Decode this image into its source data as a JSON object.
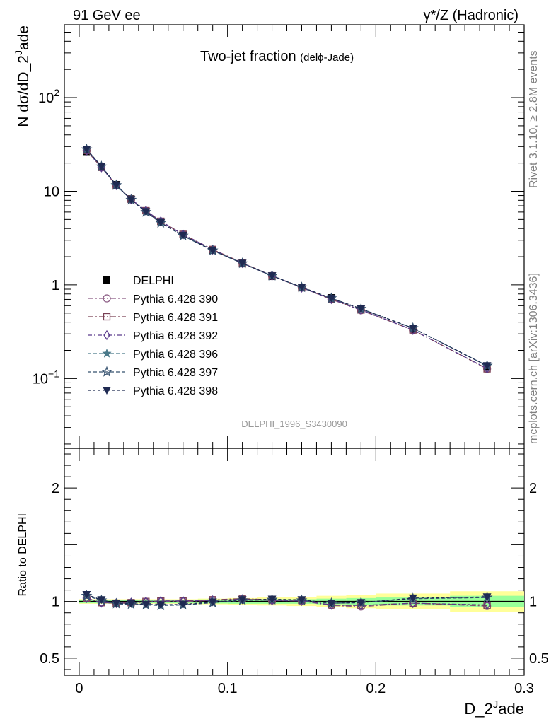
{
  "header": {
    "left": "91 GeV ee",
    "right": "γ*/Z (Hadronic)"
  },
  "side": {
    "rivet": "Rivet 3.1.10, ≥ 2.8M events",
    "source": "mcplots.cern.ch [arXiv:1306.3436]"
  },
  "chart_data": [
    {
      "type": "line",
      "title": "Two-jet fraction",
      "subtitle": "(delϕ-Jade)",
      "ylabel_parts": [
        "N dσ/dD_2",
        "J",
        "ade"
      ],
      "analysis": "DELPHI_1996_S3430090",
      "yscale": "log",
      "ylim": [
        0.018,
        600
      ],
      "xlim": [
        -0.01,
        0.3
      ],
      "y_ticks": [
        {
          "v": 0.1,
          "base": "10",
          "exp": "−1"
        },
        {
          "v": 1,
          "base": "1",
          "exp": ""
        },
        {
          "v": 10,
          "base": "10",
          "exp": ""
        },
        {
          "v": 100,
          "base": "10",
          "exp": "2"
        }
      ],
      "x": [
        0.005,
        0.015,
        0.025,
        0.035,
        0.045,
        0.055,
        0.07,
        0.09,
        0.11,
        0.13,
        0.15,
        0.17,
        0.19,
        0.225,
        0.275
      ],
      "series": [
        {
          "name": "DELPHI",
          "color": "#000000",
          "marker": "square",
          "values": [
            26.5,
            18.2,
            11.8,
            8.3,
            6.2,
            4.75,
            3.45,
            2.35,
            1.68,
            1.23,
            0.93,
            0.73,
            0.56,
            0.335,
            0.132
          ]
        },
        {
          "name": "Pythia 6.428 390",
          "color": "#8a5a83",
          "marker": "circle-open",
          "values": [
            27.2,
            18.0,
            11.6,
            8.15,
            6.15,
            4.75,
            3.45,
            2.38,
            1.71,
            1.25,
            0.935,
            0.7,
            0.535,
            0.33,
            0.127
          ]
        },
        {
          "name": "Pythia 6.428 391",
          "color": "#7a4054",
          "marker": "square-open",
          "values": [
            27.3,
            18.0,
            11.6,
            8.2,
            6.2,
            4.78,
            3.47,
            2.39,
            1.72,
            1.25,
            0.94,
            0.705,
            0.54,
            0.33,
            0.127
          ]
        },
        {
          "name": "Pythia 6.428 392",
          "color": "#5a3a8c",
          "marker": "diamond-open",
          "values": [
            27.2,
            18.0,
            11.6,
            8.2,
            6.2,
            4.78,
            3.46,
            2.38,
            1.71,
            1.25,
            0.935,
            0.705,
            0.54,
            0.33,
            0.128
          ]
        },
        {
          "name": "Pythia 6.428 396",
          "color": "#4a7a8a",
          "marker": "star",
          "values": [
            28.0,
            18.4,
            11.6,
            8.1,
            6.0,
            4.6,
            3.35,
            2.33,
            1.7,
            1.25,
            0.94,
            0.72,
            0.555,
            0.345,
            0.137
          ]
        },
        {
          "name": "Pythia 6.428 397",
          "color": "#34506e",
          "marker": "star-open",
          "values": [
            28.0,
            18.4,
            11.6,
            8.1,
            6.0,
            4.6,
            3.35,
            2.33,
            1.7,
            1.25,
            0.94,
            0.72,
            0.555,
            0.345,
            0.137
          ]
        },
        {
          "name": "Pythia 6.428 398",
          "color": "#1f2a52",
          "marker": "triangle-down",
          "values": [
            28.1,
            18.5,
            11.65,
            8.15,
            6.05,
            4.62,
            3.37,
            2.34,
            1.7,
            1.25,
            0.945,
            0.72,
            0.555,
            0.345,
            0.137
          ]
        }
      ]
    },
    {
      "type": "line",
      "ylabel": "Ratio to DELPHI",
      "xlabel_parts": [
        "D_2",
        "J",
        "ade"
      ],
      "ylim": [
        0.35,
        2.35
      ],
      "xlim": [
        -0.01,
        0.3
      ],
      "x_ticks": [
        0,
        0.1,
        0.2,
        0.3
      ],
      "x_tick_labels": [
        "0",
        "0.1",
        "0.2",
        "0.3"
      ],
      "y_ticks": [
        0.5,
        1,
        2
      ],
      "y_tick_labels": [
        "0.5",
        "1",
        "2"
      ],
      "bin_edges": [
        0,
        0.01,
        0.02,
        0.03,
        0.04,
        0.05,
        0.06,
        0.08,
        0.1,
        0.12,
        0.14,
        0.16,
        0.18,
        0.2,
        0.25,
        0.3
      ],
      "band_stat": [
        0.015,
        0.015,
        0.015,
        0.015,
        0.015,
        0.015,
        0.015,
        0.018,
        0.02,
        0.02,
        0.02,
        0.025,
        0.03,
        0.035,
        0.05
      ],
      "band_total": [
        0.02,
        0.02,
        0.02,
        0.02,
        0.02,
        0.02,
        0.02,
        0.025,
        0.03,
        0.035,
        0.04,
        0.05,
        0.06,
        0.07,
        0.09
      ],
      "band_colors": {
        "stat": "#99ff99",
        "total": "#ffff99"
      },
      "x": [
        0.005,
        0.015,
        0.025,
        0.035,
        0.045,
        0.055,
        0.07,
        0.09,
        0.11,
        0.13,
        0.15,
        0.17,
        0.19,
        0.225,
        0.275
      ],
      "series": [
        {
          "name": "Pythia 6.428 390",
          "values": [
            1.03,
            0.99,
            0.985,
            0.985,
            0.995,
            1.0,
            1.0,
            1.01,
            1.02,
            1.01,
            1.005,
            0.965,
            0.955,
            0.985,
            0.96
          ]
        },
        {
          "name": "Pythia 6.428 391",
          "values": [
            1.03,
            0.99,
            0.985,
            0.99,
            1.0,
            1.005,
            1.005,
            1.015,
            1.025,
            1.015,
            1.01,
            0.97,
            0.965,
            0.985,
            0.965
          ]
        },
        {
          "name": "Pythia 6.428 392",
          "values": [
            1.03,
            0.99,
            0.985,
            0.99,
            1.0,
            1.005,
            1.005,
            1.01,
            1.02,
            1.01,
            1.005,
            0.97,
            0.965,
            0.985,
            0.97
          ]
        },
        {
          "name": "Pythia 6.428 396",
          "values": [
            1.05,
            1.01,
            0.98,
            0.975,
            0.97,
            0.965,
            0.97,
            0.99,
            1.01,
            1.015,
            1.01,
            0.985,
            0.99,
            1.025,
            1.035
          ]
        },
        {
          "name": "Pythia 6.428 397",
          "values": [
            1.05,
            1.01,
            0.98,
            0.975,
            0.97,
            0.965,
            0.97,
            0.99,
            1.01,
            1.015,
            1.01,
            0.985,
            0.99,
            1.025,
            1.035
          ]
        },
        {
          "name": "Pythia 6.428 398",
          "values": [
            1.06,
            1.015,
            0.985,
            0.98,
            0.975,
            0.97,
            0.975,
            0.995,
            1.015,
            1.02,
            1.015,
            0.985,
            0.99,
            1.03,
            1.04
          ]
        }
      ]
    }
  ]
}
